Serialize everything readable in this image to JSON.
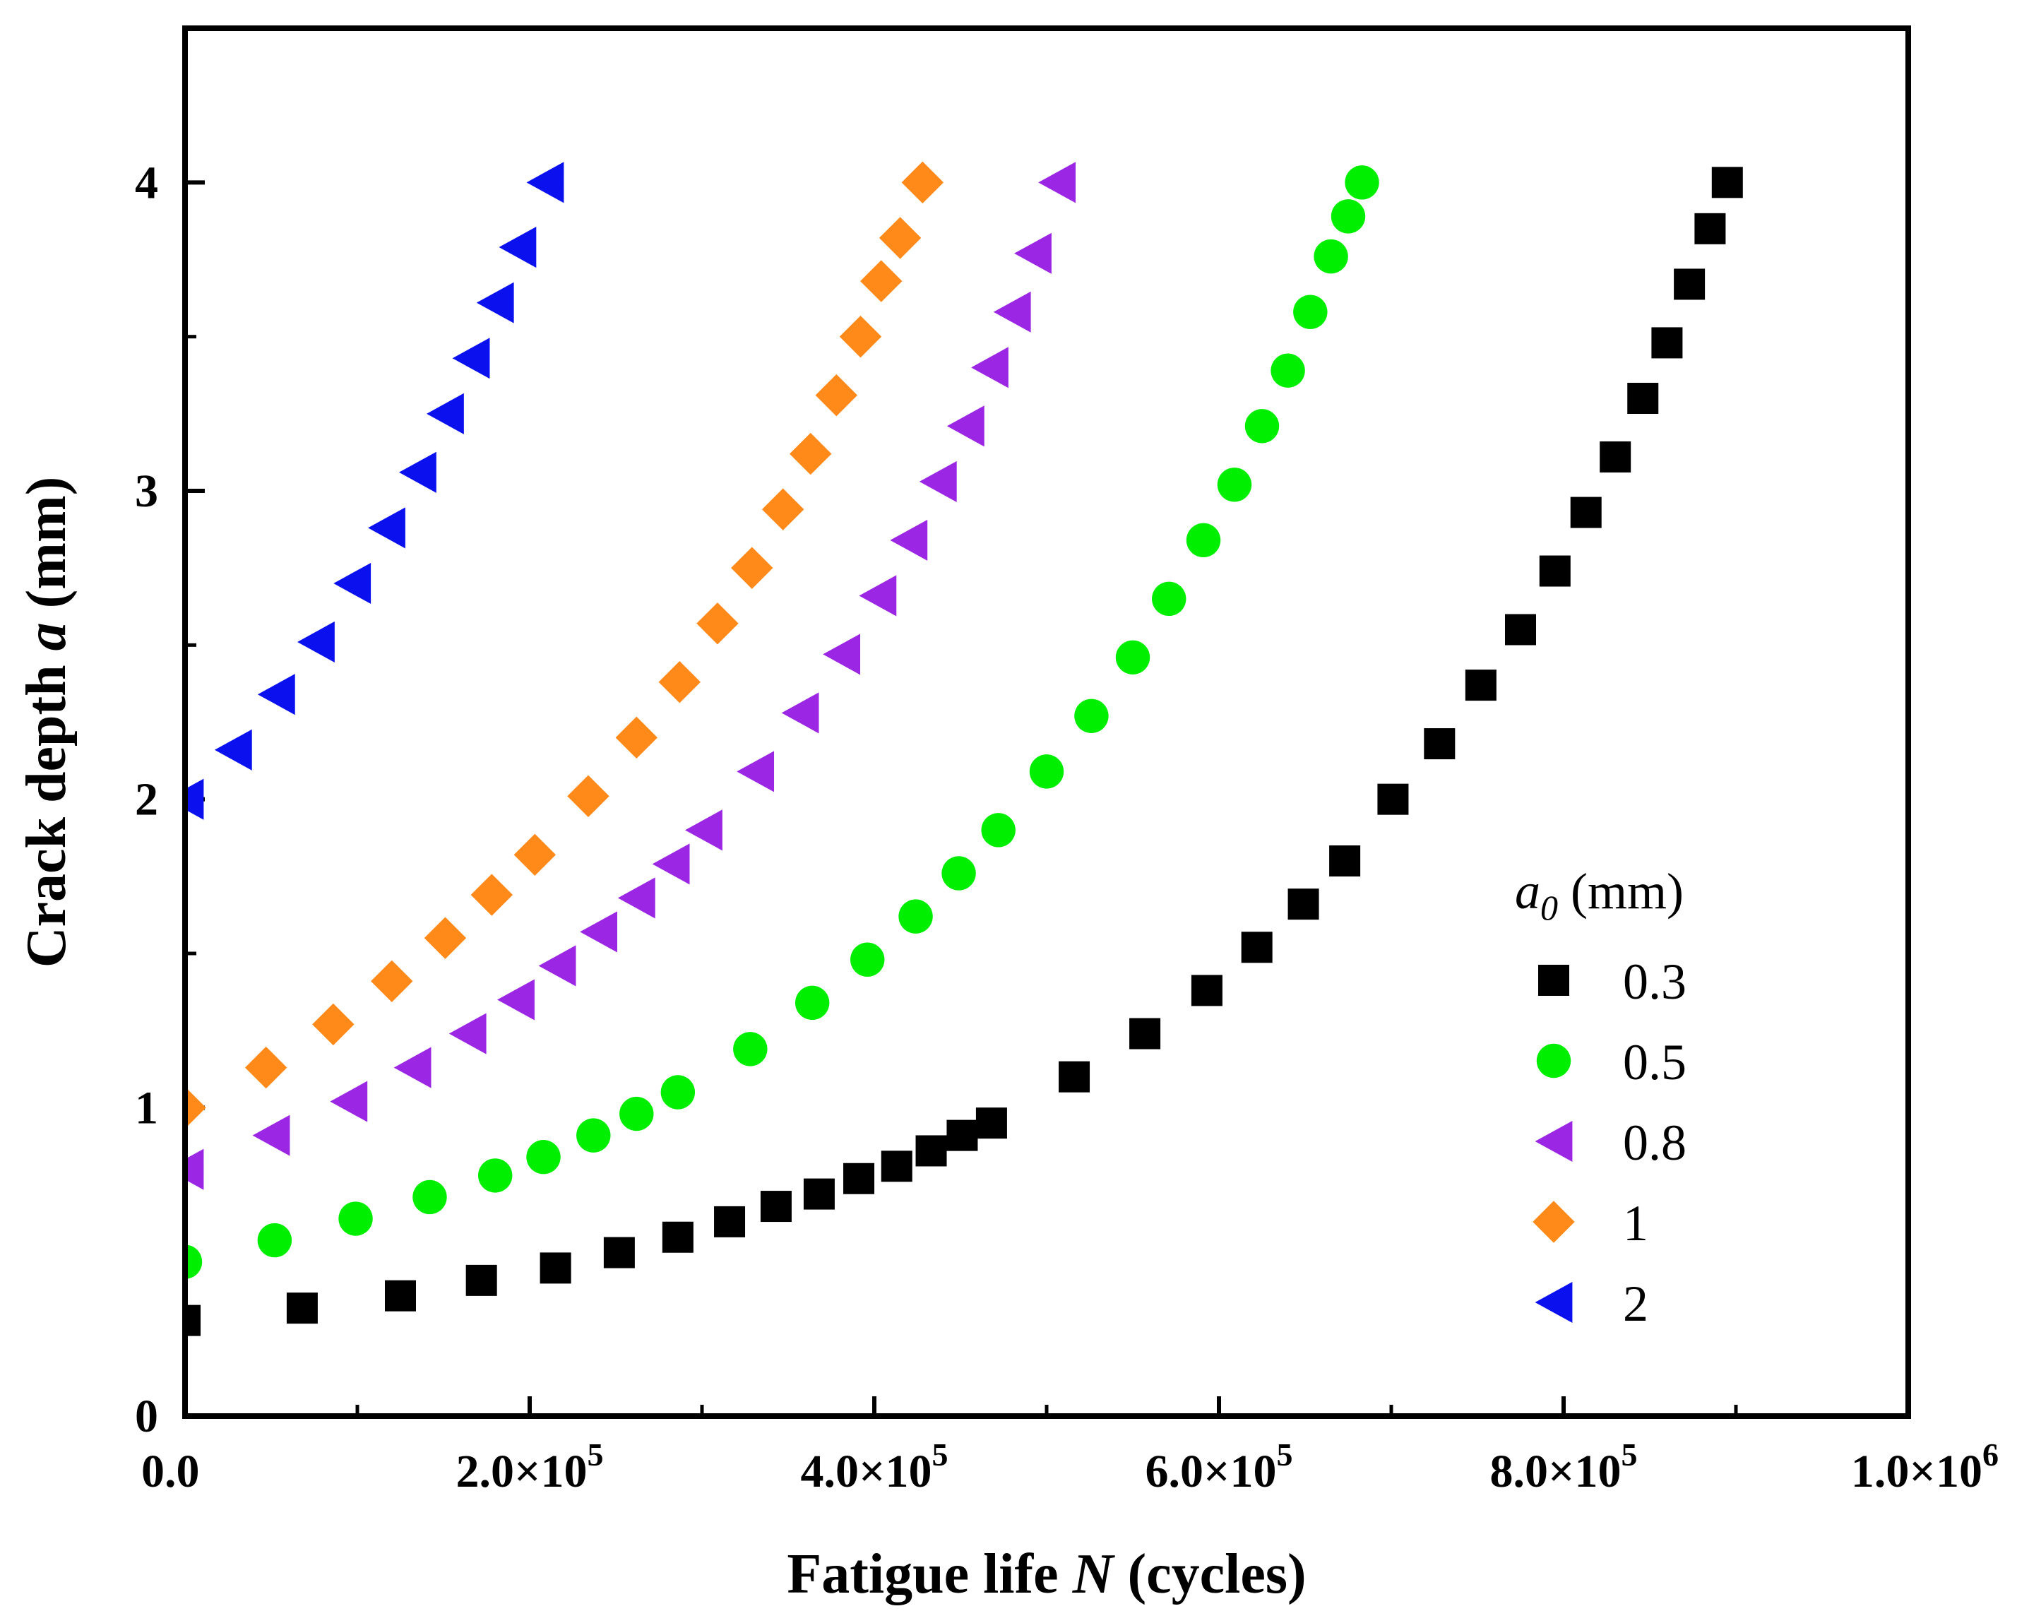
{
  "chart_data": {
    "type": "scatter",
    "xlabel_parts": [
      "Fatigue life ",
      "N",
      " (cycles)"
    ],
    "ylabel_parts": [
      "Crack depth ",
      "a",
      " (mm)"
    ],
    "xlim": [
      0,
      1000000
    ],
    "ylim": [
      0,
      4.5
    ],
    "x_ticks": [
      {
        "value": 0,
        "mantissa": "0.0",
        "exp": ""
      },
      {
        "value": 200000,
        "mantissa": "2.0×10",
        "exp": "5"
      },
      {
        "value": 400000,
        "mantissa": "4.0×10",
        "exp": "5"
      },
      {
        "value": 600000,
        "mantissa": "6.0×10",
        "exp": "5"
      },
      {
        "value": 800000,
        "mantissa": "8.0×10",
        "exp": "5"
      },
      {
        "value": 1000000,
        "mantissa": "1.0×10",
        "exp": "6"
      }
    ],
    "y_ticks": [
      {
        "value": 0,
        "label": "0"
      },
      {
        "value": 1,
        "label": "1"
      },
      {
        "value": 2,
        "label": "2"
      },
      {
        "value": 3,
        "label": "3"
      },
      {
        "value": 4,
        "label": "4"
      }
    ],
    "legend": {
      "title_base": "a",
      "title_sub": "0",
      "title_unit": " (mm)",
      "position": "bottom-right"
    },
    "series": [
      {
        "name": "0.3",
        "marker": "square",
        "color": "#000000",
        "points": [
          [
            0,
            0.31
          ],
          [
            68000,
            0.35
          ],
          [
            125000,
            0.39
          ],
          [
            172000,
            0.44
          ],
          [
            215000,
            0.48
          ],
          [
            252000,
            0.53
          ],
          [
            286000,
            0.58
          ],
          [
            316000,
            0.63
          ],
          [
            343000,
            0.68
          ],
          [
            368000,
            0.72
          ],
          [
            391000,
            0.77
          ],
          [
            413000,
            0.81
          ],
          [
            433000,
            0.86
          ],
          [
            451000,
            0.91
          ],
          [
            468000,
            0.95
          ],
          [
            516000,
            1.1
          ],
          [
            557000,
            1.24
          ],
          [
            593000,
            1.38
          ],
          [
            622000,
            1.52
          ],
          [
            649000,
            1.66
          ],
          [
            673000,
            1.8
          ],
          [
            701000,
            2.0
          ],
          [
            728000,
            2.18
          ],
          [
            752000,
            2.37
          ],
          [
            775000,
            2.55
          ],
          [
            795000,
            2.74
          ],
          [
            813000,
            2.93
          ],
          [
            830000,
            3.11
          ],
          [
            846000,
            3.3
          ],
          [
            860000,
            3.48
          ],
          [
            873000,
            3.67
          ],
          [
            885000,
            3.85
          ],
          [
            895000,
            4.0
          ]
        ]
      },
      {
        "name": "0.5",
        "marker": "circle",
        "color": "#00ee00",
        "points": [
          [
            0,
            0.5
          ],
          [
            52000,
            0.57
          ],
          [
            99000,
            0.64
          ],
          [
            142000,
            0.71
          ],
          [
            180000,
            0.78
          ],
          [
            208000,
            0.84
          ],
          [
            237000,
            0.91
          ],
          [
            262000,
            0.98
          ],
          [
            286000,
            1.05
          ],
          [
            328000,
            1.19
          ],
          [
            364000,
            1.34
          ],
          [
            396000,
            1.48
          ],
          [
            424000,
            1.62
          ],
          [
            449000,
            1.76
          ],
          [
            472000,
            1.9
          ],
          [
            500000,
            2.09
          ],
          [
            526000,
            2.27
          ],
          [
            550000,
            2.46
          ],
          [
            571000,
            2.65
          ],
          [
            591000,
            2.84
          ],
          [
            609000,
            3.02
          ],
          [
            625000,
            3.21
          ],
          [
            640000,
            3.39
          ],
          [
            653000,
            3.58
          ],
          [
            665000,
            3.76
          ],
          [
            675000,
            3.89
          ],
          [
            683000,
            4.0
          ]
        ]
      },
      {
        "name": "0.8",
        "marker": "triangle-left",
        "color": "#9b26e4",
        "points": [
          [
            0,
            0.8
          ],
          [
            50000,
            0.91
          ],
          [
            95000,
            1.02
          ],
          [
            132000,
            1.13
          ],
          [
            164000,
            1.24
          ],
          [
            192000,
            1.35
          ],
          [
            216000,
            1.46
          ],
          [
            240000,
            1.57
          ],
          [
            262000,
            1.68
          ],
          [
            282000,
            1.79
          ],
          [
            301000,
            1.9
          ],
          [
            331000,
            2.09
          ],
          [
            357000,
            2.28
          ],
          [
            381000,
            2.47
          ],
          [
            402000,
            2.66
          ],
          [
            420000,
            2.84
          ],
          [
            437000,
            3.03
          ],
          [
            453000,
            3.21
          ],
          [
            467000,
            3.4
          ],
          [
            480000,
            3.58
          ],
          [
            492000,
            3.77
          ],
          [
            506000,
            4.0
          ]
        ]
      },
      {
        "name": "1",
        "marker": "diamond",
        "color": "#ff8a1a",
        "points": [
          [
            0,
            1.0
          ],
          [
            47000,
            1.13
          ],
          [
            86000,
            1.27
          ],
          [
            120000,
            1.41
          ],
          [
            151000,
            1.55
          ],
          [
            178000,
            1.69
          ],
          [
            203000,
            1.82
          ],
          [
            234000,
            2.01
          ],
          [
            262000,
            2.2
          ],
          [
            287000,
            2.38
          ],
          [
            309000,
            2.57
          ],
          [
            329000,
            2.75
          ],
          [
            347000,
            2.94
          ],
          [
            363000,
            3.12
          ],
          [
            378000,
            3.31
          ],
          [
            392000,
            3.5
          ],
          [
            404000,
            3.68
          ],
          [
            415000,
            3.82
          ],
          [
            428000,
            4.0
          ]
        ]
      },
      {
        "name": "2",
        "marker": "triangle-left",
        "color": "#0a10ee",
        "points": [
          [
            0,
            2.0
          ],
          [
            28000,
            2.16
          ],
          [
            53000,
            2.34
          ],
          [
            76000,
            2.51
          ],
          [
            97000,
            2.7
          ],
          [
            117000,
            2.88
          ],
          [
            135000,
            3.06
          ],
          [
            151000,
            3.25
          ],
          [
            166000,
            3.43
          ],
          [
            180000,
            3.61
          ],
          [
            193000,
            3.79
          ],
          [
            209000,
            4.0
          ]
        ]
      }
    ]
  }
}
